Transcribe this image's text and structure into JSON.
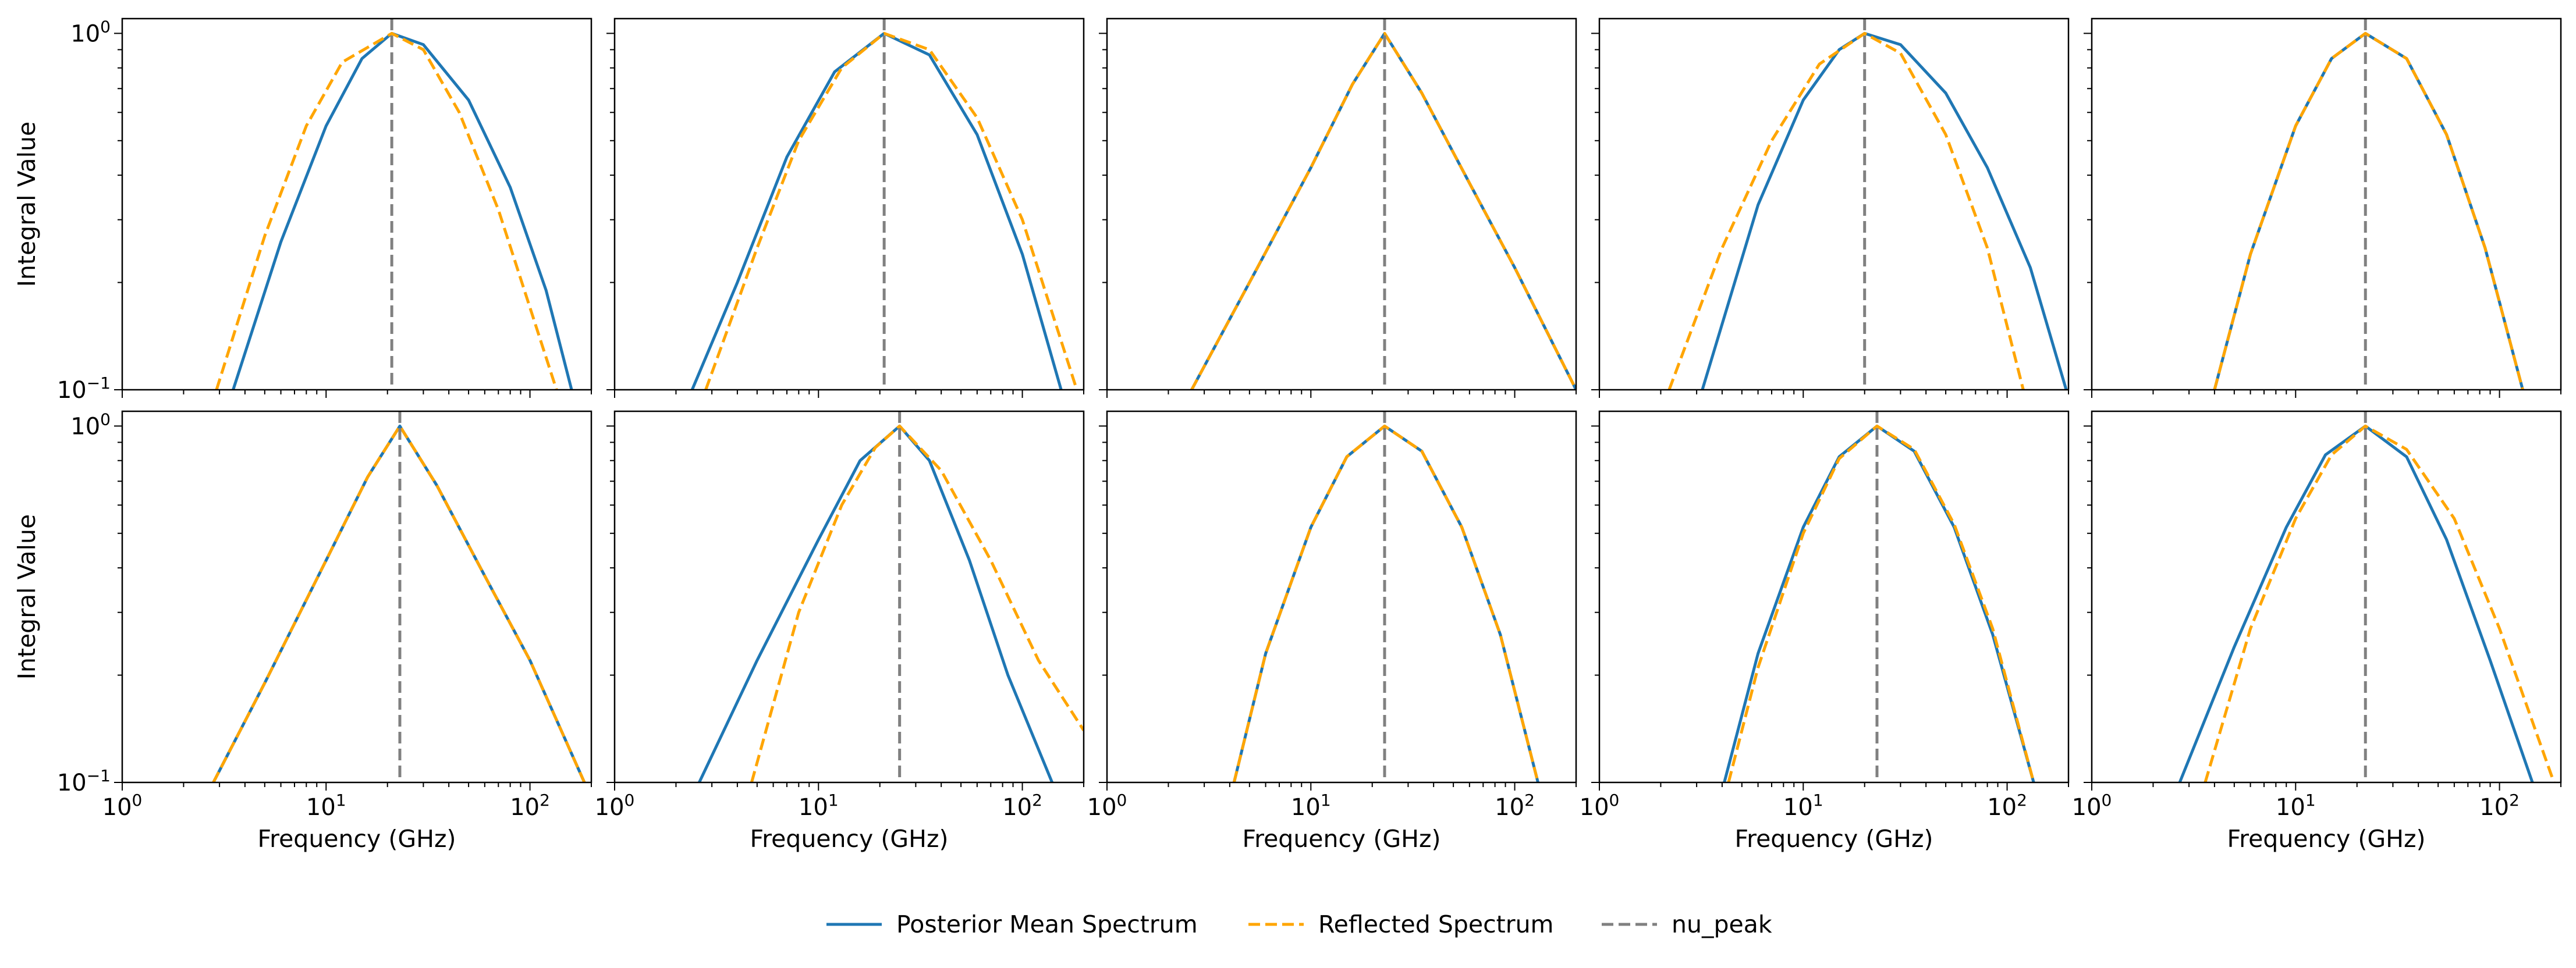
{
  "figure": {
    "legend": {
      "placement": "bottom-center",
      "entries": [
        {
          "name": "Posterior Mean Spectrum",
          "color": "#1f77b4",
          "style": "solid"
        },
        {
          "name": "Reflected Spectrum",
          "color": "#ffa500",
          "style": "dashed"
        },
        {
          "name": "nu_peak",
          "color": "#808080",
          "style": "dashed"
        }
      ]
    },
    "shared_axes": {
      "xlabel": "Frequency (GHz)",
      "ylabel": "Integral Value",
      "x_scale": "log",
      "y_scale": "log",
      "xlim": [
        1,
        200
      ],
      "ylim": [
        0.1,
        1.1
      ],
      "x_ticks": [
        {
          "value": 1,
          "label": "10",
          "sup": "0"
        },
        {
          "value": 10,
          "label": "10",
          "sup": "1"
        },
        {
          "value": 100,
          "label": "10",
          "sup": "2"
        }
      ],
      "y_ticks": [
        {
          "value": 0.1,
          "label": "10",
          "sup": "−1"
        },
        {
          "value": 1,
          "label": "10",
          "sup": "0"
        }
      ]
    }
  },
  "chart_data": [
    {
      "type": "line",
      "row": 1,
      "col": 1,
      "nu_peak": 21,
      "series": [
        {
          "name": "Posterior Mean Spectrum",
          "x": [
            3.5,
            6,
            10,
            15,
            21,
            30,
            50,
            80,
            120,
            160
          ],
          "y": [
            0.1,
            0.26,
            0.55,
            0.85,
            1.0,
            0.93,
            0.65,
            0.37,
            0.19,
            0.1
          ]
        },
        {
          "name": "Reflected Spectrum",
          "x": [
            2.9,
            5,
            8,
            12,
            21,
            30,
            45,
            70,
            100,
            135
          ],
          "y": [
            0.1,
            0.27,
            0.55,
            0.83,
            1.0,
            0.9,
            0.6,
            0.32,
            0.17,
            0.1
          ]
        }
      ]
    },
    {
      "type": "line",
      "row": 1,
      "col": 2,
      "nu_peak": 21,
      "series": [
        {
          "name": "Posterior Mean Spectrum",
          "x": [
            2.4,
            4,
            7,
            12,
            21,
            35,
            60,
            100,
            155
          ],
          "y": [
            0.1,
            0.2,
            0.45,
            0.78,
            1.0,
            0.87,
            0.52,
            0.24,
            0.1
          ]
        },
        {
          "name": "Reflected Spectrum",
          "x": [
            2.8,
            5,
            8,
            13,
            21,
            35,
            60,
            100,
            185
          ],
          "y": [
            0.1,
            0.25,
            0.5,
            0.8,
            1.0,
            0.9,
            0.58,
            0.3,
            0.1
          ]
        }
      ]
    },
    {
      "type": "line",
      "row": 1,
      "col": 3,
      "nu_peak": 23,
      "series": [
        {
          "name": "Posterior Mean Spectrum",
          "x": [
            2.6,
            5,
            10,
            16,
            23,
            35,
            60,
            100,
            200
          ],
          "y": [
            0.1,
            0.2,
            0.42,
            0.72,
            1.0,
            0.68,
            0.38,
            0.22,
            0.1
          ]
        },
        {
          "name": "Reflected Spectrum",
          "x": [
            2.6,
            5,
            10,
            16,
            23,
            35,
            60,
            100,
            200
          ],
          "y": [
            0.1,
            0.2,
            0.42,
            0.72,
            1.0,
            0.68,
            0.38,
            0.22,
            0.1
          ]
        }
      ]
    },
    {
      "type": "line",
      "row": 1,
      "col": 4,
      "nu_peak": 20,
      "series": [
        {
          "name": "Posterior Mean Spectrum",
          "x": [
            3.2,
            6,
            10,
            15,
            20,
            30,
            50,
            80,
            130,
            195
          ],
          "y": [
            0.1,
            0.33,
            0.65,
            0.9,
            1.0,
            0.93,
            0.68,
            0.42,
            0.22,
            0.1
          ]
        },
        {
          "name": "Reflected Spectrum",
          "x": [
            2.2,
            4,
            7,
            12,
            20,
            30,
            50,
            80,
            120
          ],
          "y": [
            0.1,
            0.25,
            0.5,
            0.82,
            1.0,
            0.88,
            0.52,
            0.25,
            0.1
          ]
        }
      ]
    },
    {
      "type": "line",
      "row": 1,
      "col": 5,
      "nu_peak": 22,
      "series": [
        {
          "name": "Posterior Mean Spectrum",
          "x": [
            4,
            6,
            10,
            15,
            22,
            35,
            55,
            85,
            130
          ],
          "y": [
            0.1,
            0.24,
            0.55,
            0.85,
            1.0,
            0.85,
            0.52,
            0.25,
            0.1
          ]
        },
        {
          "name": "Reflected Spectrum",
          "x": [
            4,
            6,
            10,
            15,
            22,
            35,
            55,
            85,
            130
          ],
          "y": [
            0.1,
            0.24,
            0.55,
            0.85,
            1.0,
            0.85,
            0.52,
            0.25,
            0.1
          ]
        }
      ]
    },
    {
      "type": "line",
      "row": 2,
      "col": 1,
      "nu_peak": 23,
      "series": [
        {
          "name": "Posterior Mean Spectrum",
          "x": [
            2.8,
            5,
            10,
            16,
            23,
            35,
            60,
            100,
            185
          ],
          "y": [
            0.1,
            0.19,
            0.42,
            0.72,
            1.0,
            0.68,
            0.38,
            0.22,
            0.1
          ]
        },
        {
          "name": "Reflected Spectrum",
          "x": [
            2.8,
            5,
            10,
            16,
            23,
            35,
            60,
            100,
            185
          ],
          "y": [
            0.1,
            0.19,
            0.42,
            0.72,
            1.0,
            0.68,
            0.38,
            0.22,
            0.1
          ]
        }
      ]
    },
    {
      "type": "line",
      "row": 2,
      "col": 2,
      "nu_peak": 25,
      "series": [
        {
          "name": "Posterior Mean Spectrum",
          "x": [
            2.6,
            5,
            10,
            16,
            25,
            35,
            55,
            85,
            140
          ],
          "y": [
            0.1,
            0.22,
            0.48,
            0.8,
            1.0,
            0.8,
            0.42,
            0.2,
            0.1
          ]
        },
        {
          "name": "Reflected Spectrum",
          "x": [
            4.7,
            8,
            13,
            19,
            25,
            40,
            70,
            120,
            200
          ],
          "y": [
            0.1,
            0.3,
            0.6,
            0.87,
            1.0,
            0.75,
            0.42,
            0.22,
            0.14
          ]
        }
      ]
    },
    {
      "type": "line",
      "row": 2,
      "col": 3,
      "nu_peak": 23,
      "series": [
        {
          "name": "Posterior Mean Spectrum",
          "x": [
            4.2,
            6,
            10,
            15,
            23,
            35,
            55,
            85,
            130
          ],
          "y": [
            0.1,
            0.23,
            0.52,
            0.82,
            1.0,
            0.85,
            0.52,
            0.26,
            0.1
          ]
        },
        {
          "name": "Reflected Spectrum",
          "x": [
            4.2,
            6,
            10,
            15,
            23,
            35,
            55,
            85,
            130
          ],
          "y": [
            0.1,
            0.23,
            0.52,
            0.82,
            1.0,
            0.85,
            0.52,
            0.26,
            0.1
          ]
        }
      ]
    },
    {
      "type": "line",
      "row": 2,
      "col": 4,
      "nu_peak": 23,
      "series": [
        {
          "name": "Posterior Mean Spectrum",
          "x": [
            4.1,
            6,
            10,
            15,
            23,
            35,
            55,
            85,
            135
          ],
          "y": [
            0.1,
            0.23,
            0.52,
            0.82,
            1.0,
            0.85,
            0.52,
            0.26,
            0.1
          ]
        },
        {
          "name": "Reflected Spectrum",
          "x": [
            4.3,
            6,
            10,
            15,
            23,
            35,
            55,
            85,
            135
          ],
          "y": [
            0.1,
            0.21,
            0.5,
            0.81,
            1.0,
            0.86,
            0.53,
            0.27,
            0.1
          ]
        }
      ]
    },
    {
      "type": "line",
      "row": 2,
      "col": 5,
      "nu_peak": 22,
      "series": [
        {
          "name": "Posterior Mean Spectrum",
          "x": [
            2.7,
            5,
            9,
            14,
            22,
            35,
            55,
            90,
            145
          ],
          "y": [
            0.1,
            0.24,
            0.52,
            0.83,
            1.0,
            0.82,
            0.48,
            0.22,
            0.1
          ]
        },
        {
          "name": "Reflected Spectrum",
          "x": [
            3.6,
            6,
            10,
            15,
            22,
            35,
            60,
            100,
            185
          ],
          "y": [
            0.1,
            0.27,
            0.55,
            0.83,
            1.0,
            0.86,
            0.55,
            0.27,
            0.1
          ]
        }
      ]
    }
  ]
}
